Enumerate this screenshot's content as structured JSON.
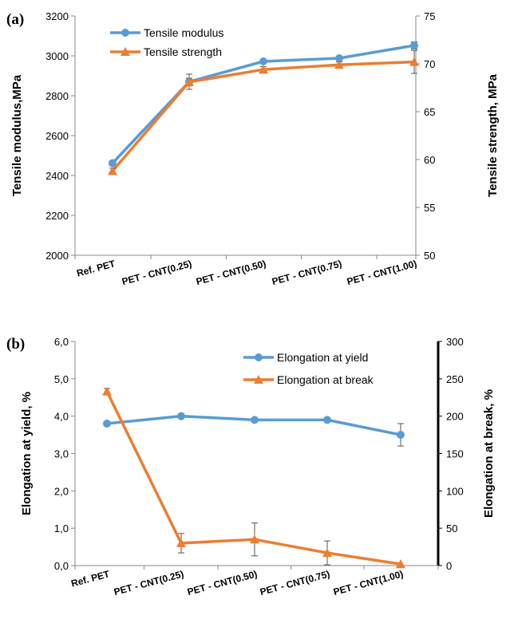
{
  "colors": {
    "blue": "#5b9bd5",
    "orange": "#ed7d31",
    "errorbar": "#555555"
  },
  "chart_data": [
    {
      "panel_label": "(a)",
      "type": "line",
      "categories": [
        "Ref. PET",
        "PET - CNT(0.25)",
        "PET - CNT(0.50)",
        "PET - CNT(0.75)",
        "PET - CNT(1.00)"
      ],
      "ylabel": "Tensile modulus,MPa",
      "y2label": "Tensile strength, MPa",
      "ylim": [
        2000,
        3200
      ],
      "y2lim": [
        50,
        75
      ],
      "yticks": [
        "2000",
        "2200",
        "2400",
        "2600",
        "2800",
        "3000",
        "3200"
      ],
      "y2ticks": [
        "50",
        "55",
        "60",
        "65",
        "70",
        "75"
      ],
      "legend_position": "top-left",
      "series": [
        {
          "name": "Tensile modulus",
          "axis": "left",
          "marker": "circle",
          "color": "#5b9bd5",
          "values": [
            2462,
            2870,
            2972,
            2988,
            3052
          ],
          "errors": [
            12,
            38,
            8,
            8,
            18
          ]
        },
        {
          "name": "Tensile strength",
          "axis": "right",
          "marker": "triangle",
          "color": "#ed7d31",
          "values": [
            58.8,
            68.1,
            69.4,
            69.9,
            70.2
          ],
          "errors": [
            0.3,
            0.4,
            0.3,
            0.3,
            1.2
          ]
        }
      ]
    },
    {
      "panel_label": "(b)",
      "type": "line",
      "categories": [
        "Ref. PET",
        "PET - CNT(0.25)",
        "PET - CNT(0.50)",
        "PET - CNT(0.75)",
        "PET - CNT(1.00)"
      ],
      "ylabel": "Elongation at yield, %",
      "y2label": "Elongation at break, %",
      "ylim": [
        0,
        6
      ],
      "y2lim": [
        0,
        300
      ],
      "yticks": [
        "0,0",
        "1,0",
        "2,0",
        "3,0",
        "4,0",
        "5,0",
        "6,0"
      ],
      "y2ticks": [
        "0",
        "50",
        "100",
        "150",
        "200",
        "250",
        "300"
      ],
      "legend_position": "top-right",
      "series": [
        {
          "name": "Elongation at yield",
          "axis": "left",
          "marker": "circle",
          "color": "#5b9bd5",
          "values": [
            3.8,
            4.0,
            3.9,
            3.9,
            3.5
          ],
          "errors": [
            0,
            0,
            0,
            0,
            0.3
          ]
        },
        {
          "name": "Elongation at break",
          "axis": "right",
          "marker": "triangle",
          "color": "#ed7d31",
          "values": [
            233,
            30,
            35,
            17,
            2
          ],
          "errors": [
            4,
            13,
            22,
            16,
            0
          ]
        }
      ]
    }
  ]
}
